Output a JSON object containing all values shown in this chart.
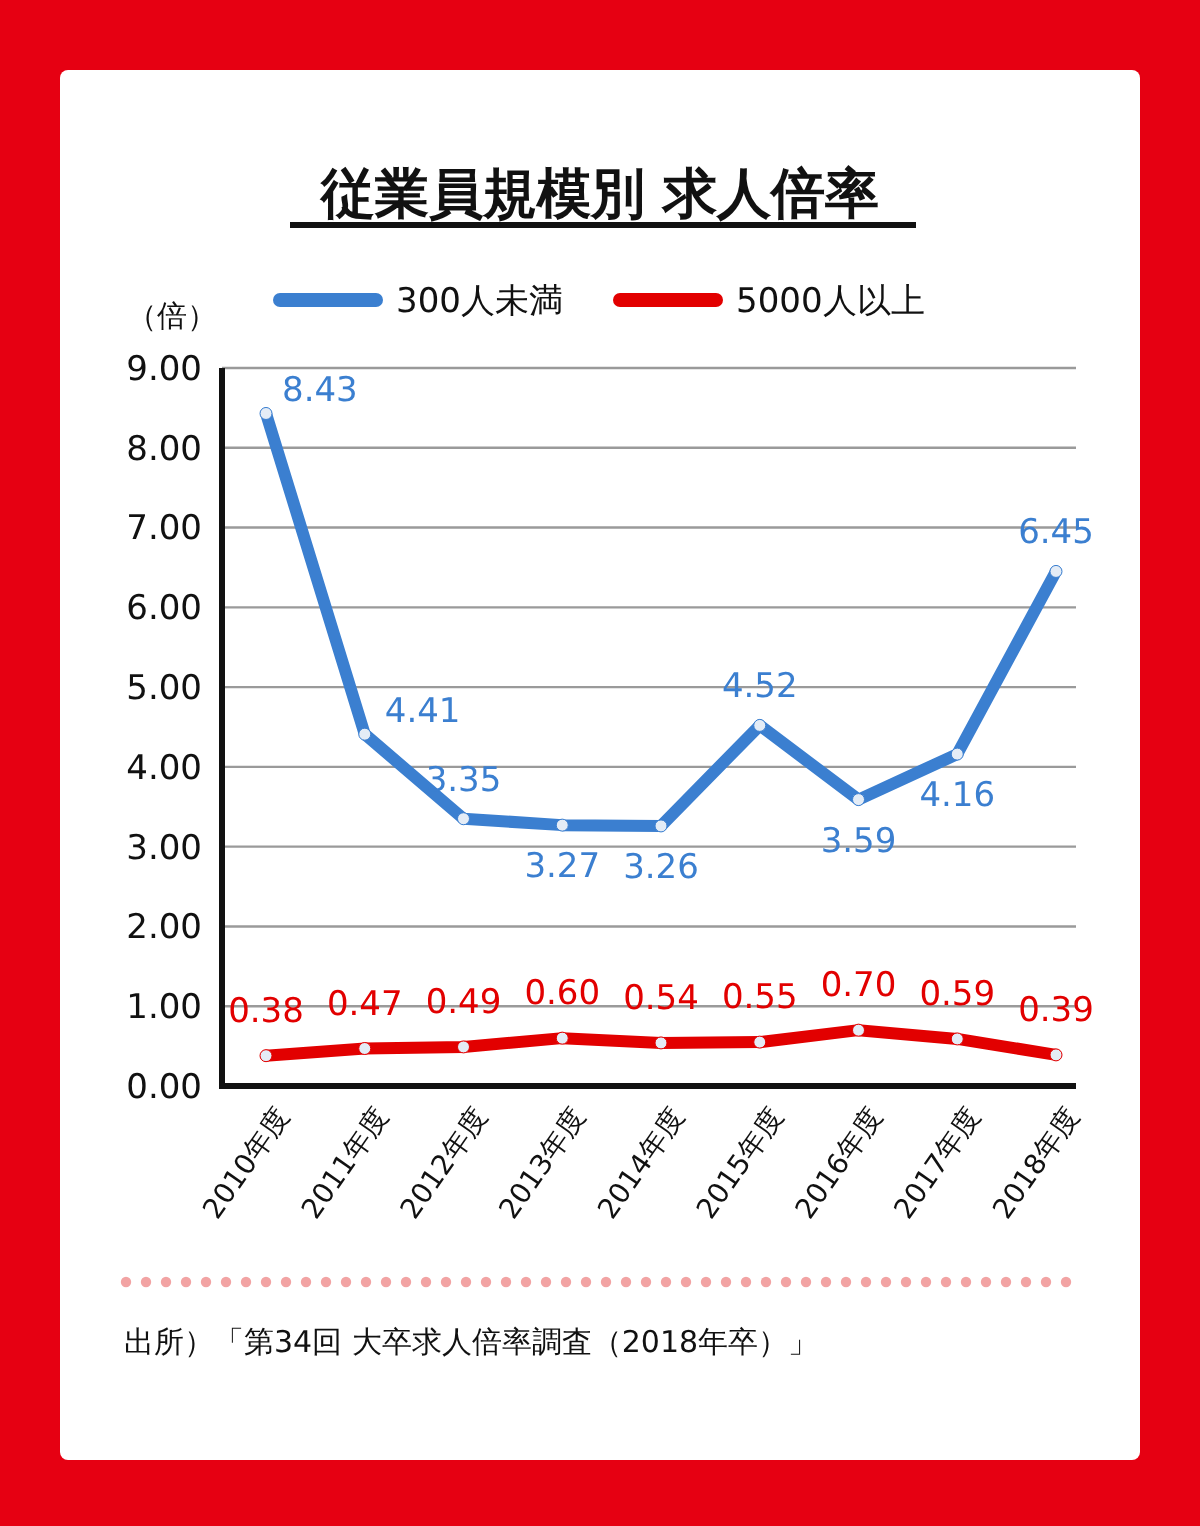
{
  "chart_data": {
    "type": "line",
    "title": "従業員規模別 求人倍率",
    "ylabel": "（倍）",
    "categories": [
      "2010年度",
      "2011年度",
      "2012年度",
      "2013年度",
      "2014年度",
      "2015年度",
      "2016年度",
      "2017年度",
      "2018年度"
    ],
    "series": [
      {
        "name": "300人未満",
        "color": "#3b7fd0",
        "values": [
          8.43,
          4.41,
          3.35,
          3.27,
          3.26,
          4.52,
          3.59,
          4.16,
          6.45
        ],
        "value_labels": [
          "8.43",
          "4.41",
          "3.35",
          "3.27",
          "3.26",
          "4.52",
          "3.59",
          "4.16",
          "6.45"
        ]
      },
      {
        "name": "5000人以上",
        "color": "#e20000",
        "values": [
          0.38,
          0.47,
          0.49,
          0.6,
          0.54,
          0.55,
          0.7,
          0.59,
          0.39
        ],
        "value_labels": [
          "0.38",
          "0.47",
          "0.49",
          "0.60",
          "0.54",
          "0.55",
          "0.70",
          "0.59",
          "0.39"
        ]
      }
    ],
    "ylim": [
      0,
      9
    ],
    "yticks": [
      {
        "value": 0,
        "label": "0.00"
      },
      {
        "value": 1,
        "label": "1.00"
      },
      {
        "value": 2,
        "label": "2.00"
      },
      {
        "value": 3,
        "label": "3.00"
      },
      {
        "value": 4,
        "label": "4.00"
      },
      {
        "value": 5,
        "label": "5.00"
      },
      {
        "value": 6,
        "label": "6.00"
      },
      {
        "value": 7,
        "label": "7.00"
      },
      {
        "value": 8,
        "label": "8.00"
      },
      {
        "value": 9,
        "label": "9.00"
      }
    ],
    "grid": "y",
    "legend": "top",
    "marker": "circle",
    "line_style": "solid",
    "annotations": [
      "出所）「第34回 大卒求人倍率調査（2018年卒）」"
    ]
  }
}
